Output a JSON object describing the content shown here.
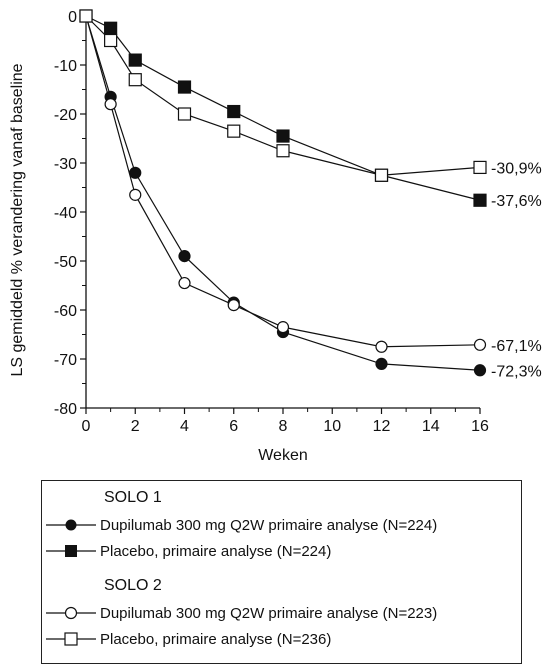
{
  "chart_data": {
    "type": "line",
    "title": "",
    "xlabel": "Weken",
    "ylabel": "LS gemiddeld % verandering vanaf baseline",
    "xlim": [
      0,
      16
    ],
    "ylim": [
      -80,
      0
    ],
    "xticks": [
      "0",
      "2",
      "4",
      "6",
      "8",
      "10",
      "12",
      "14",
      "16"
    ],
    "yticks": [
      "0",
      "-10",
      "-20",
      "-30",
      "-40",
      "-50",
      "-60",
      "-70",
      "-80"
    ],
    "grid": false,
    "legend_position": "bottom",
    "series": [
      {
        "name": "Dupilumab 300 mg Q2W primaire analyse (N=224)",
        "group": "SOLO 1",
        "marker": "filled-circle",
        "x": [
          0,
          1,
          2,
          4,
          6,
          8,
          12,
          16
        ],
        "y": [
          0,
          -16.5,
          -32,
          -49,
          -58.5,
          -64.5,
          -71,
          -72.3
        ],
        "end_label": "-72,3%"
      },
      {
        "name": "Placebo, primaire analyse (N=224)",
        "group": "SOLO 1",
        "marker": "filled-square",
        "x": [
          0,
          1,
          2,
          4,
          6,
          8,
          12,
          16
        ],
        "y": [
          0,
          -2.5,
          -9,
          -14.5,
          -19.5,
          -24.5,
          -32.5,
          -37.6
        ],
        "end_label": "-37,6%"
      },
      {
        "name": "Dupilumab 300 mg Q2W primaire analyse (N=223)",
        "group": "SOLO 2",
        "marker": "open-circle",
        "x": [
          0,
          1,
          2,
          4,
          6,
          8,
          12,
          16
        ],
        "y": [
          0,
          -18,
          -36.5,
          -54.5,
          -59,
          -63.5,
          -67.5,
          -67.1
        ],
        "end_label": "-67,1%"
      },
      {
        "name": "Placebo, primaire analyse (N=236)",
        "group": "SOLO 2",
        "marker": "open-square",
        "x": [
          0,
          1,
          2,
          4,
          6,
          8,
          12,
          16
        ],
        "y": [
          0,
          -5,
          -13,
          -20,
          -23.5,
          -27.5,
          -32.5,
          -30.9
        ],
        "end_label": "-30,9%"
      }
    ]
  },
  "legend": {
    "groups": [
      {
        "title": "SOLO 1",
        "entries": [
          {
            "label": "Dupilumab 300 mg Q2W primaire analyse (N=224)",
            "marker": "filled-circle"
          },
          {
            "label": "Placebo, primaire analyse (N=224)",
            "marker": "filled-square"
          }
        ]
      },
      {
        "title": "SOLO 2",
        "entries": [
          {
            "label": "Dupilumab 300 mg Q2W primaire analyse (N=223)",
            "marker": "open-circle"
          },
          {
            "label": "Placebo, primaire analyse (N=236)",
            "marker": "open-square"
          }
        ]
      }
    ]
  },
  "colors": {
    "line": "#111111",
    "marker_fill": "#111111",
    "open_fill": "#ffffff"
  }
}
